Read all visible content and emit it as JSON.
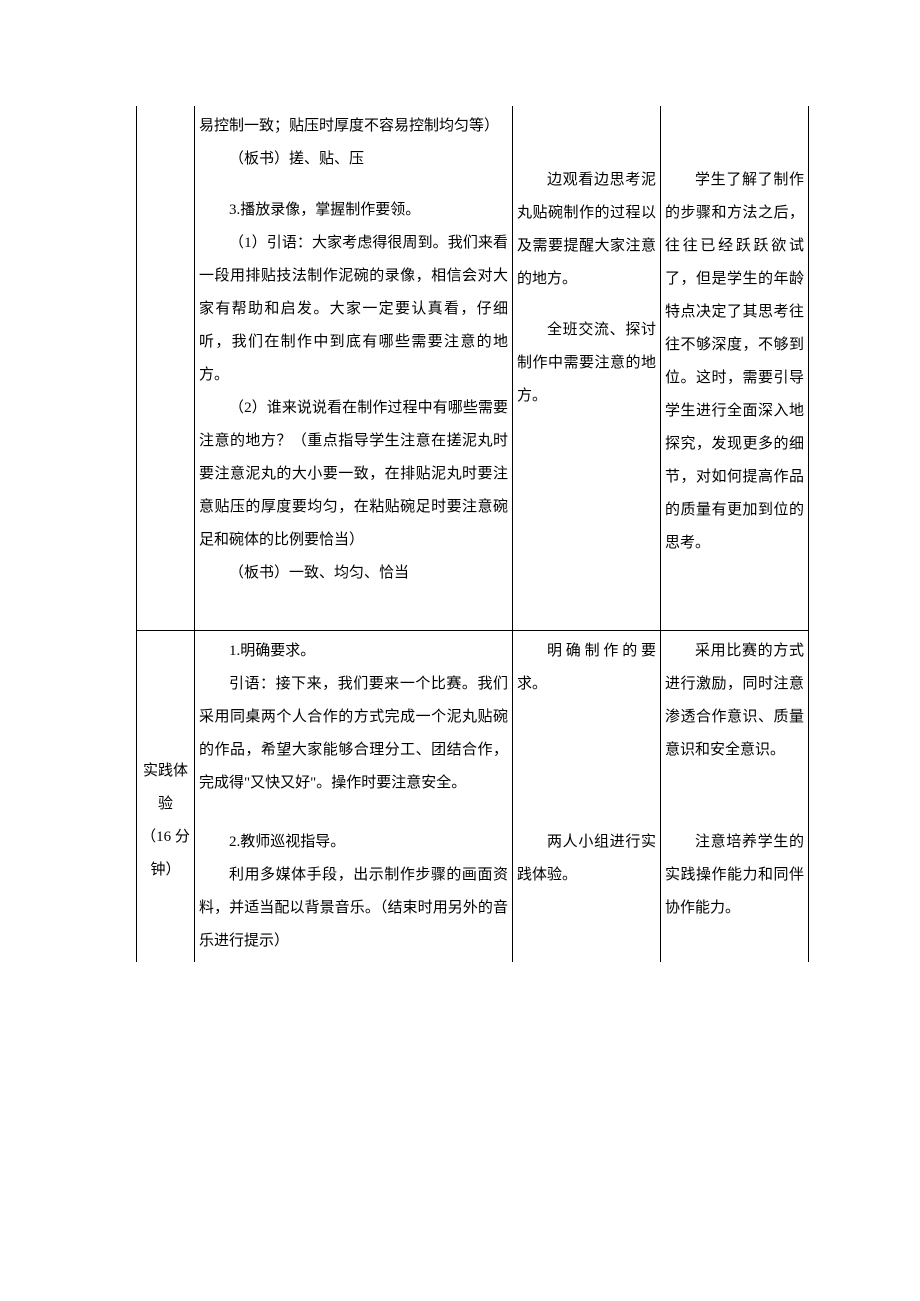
{
  "row1": {
    "teach_p1": "易控制一致；贴压时厚度不容易控制均匀等）",
    "teach_p2": "（板书）搓、贴、压",
    "teach_p3": "3.播放录像，掌握制作要领。",
    "teach_p4": "（1）引语：大家考虑得很周到。我们来看一段用排贴技法制作泥碗的录像，相信会对大家有帮助和启发。大家一定要认真看，仔细听，我们在制作中到底有哪些需要注意的地方。",
    "teach_p5": "（2）谁来说说看在制作过程中有哪些需要注意的地方？（重点指导学生注意在搓泥丸时要注意泥丸的大小要一致，在排贴泥丸时要注意贴压的厚度要均匀，在粘贴碗足时要注意碗足和碗体的比例要恰当）",
    "teach_p6": "（板书）一致、均匀、恰当",
    "student_p1": "边观看边思考泥丸贴碗制作的过程以及需要提醒大家注意的地方。",
    "student_p2": "全班交流、探讨制作中需要注意的地方。",
    "intent_p1": "学生了解了制作的步骤和方法之后，往往已经跃跃欲试了，但是学生的年龄特点决定了其思考往往不够深度，不够到位。这时，需要引导学生进行全面深入地探究，发现更多的细节，对如何提高作品的质量有更加到位的思考。"
  },
  "row2": {
    "stage_l1": "实践体",
    "stage_l2": "验",
    "stage_l3": "（16 分",
    "stage_l4": "钟）",
    "teach_a_p1": "1.明确要求。",
    "teach_a_p2": "引语：接下来，我们要来一个比赛。我们采用同桌两个人合作的方式完成一个泥丸贴碗的作品，希望大家能够合理分工、团结合作，完成得\"又快又好\"。操作时要注意安全。",
    "teach_b_p1": "2.教师巡视指导。",
    "teach_b_p2": "利用多媒体手段，出示制作步骤的画面资料，并适当配以背景音乐。（结束时用另外的音乐进行提示）",
    "student_a_p1": "明确制作的要求。",
    "student_b_p1": "两人小组进行实践体验。",
    "intent_a_p1": "采用比赛的方式进行激励，同时注意渗透合作意识、质量意识和安全意识。",
    "intent_b_p1": "注意培养学生的实践操作能力和同伴协作能力。"
  },
  "colors": {
    "text": "#000000",
    "border": "#000000",
    "background": "#ffffff"
  },
  "fontsize_pt": 11
}
